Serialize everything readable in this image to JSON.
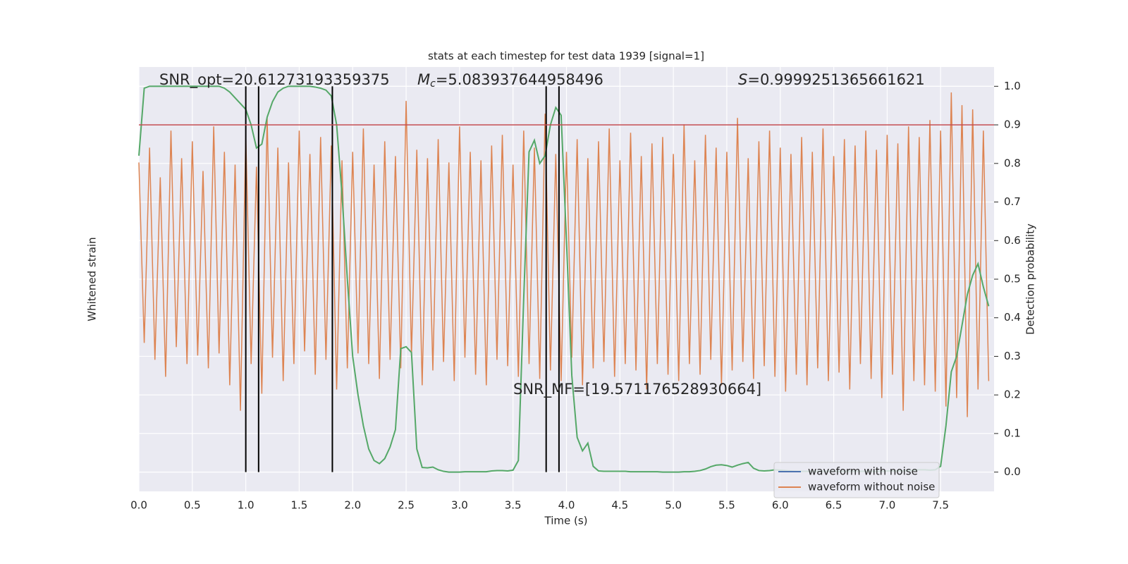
{
  "chart_data": {
    "type": "line",
    "title": "stats at each timestep for test data 1939 [signal=1]",
    "xlabel": "Time (s)",
    "ylabel": "Whitened strain",
    "y2label": "Detection probability",
    "annotations": [
      {
        "text": "SNR_opt=20.61273193359375"
      },
      {
        "symbol": "M",
        "sub": "c",
        "text": "=5.083937644958496"
      },
      {
        "symbol": "S",
        "text": "=0.9999251365661621"
      },
      {
        "text": "SNR_MF=[19.571176528930664]"
      }
    ],
    "xlim": [
      0,
      8
    ],
    "xticks": [
      {
        "value": 0,
        "label": "0.0"
      },
      0.5,
      {
        "value": 1,
        "label": "1.0"
      },
      1.5,
      {
        "value": 2,
        "label": "2.0"
      },
      2.5,
      {
        "value": 3,
        "label": "3.0"
      },
      3.5,
      {
        "value": 4,
        "label": "4.0"
      },
      4.5,
      {
        "value": 5,
        "label": "5.0"
      },
      5.5,
      {
        "value": 6,
        "label": "6.0"
      },
      6.5,
      {
        "value": 7,
        "label": "7.0"
      },
      7.5
    ],
    "ylim": [
      -1.1,
      0.9
    ],
    "y2lim": [
      -0.05,
      1.05
    ],
    "y2ticks": [
      {
        "value": 0,
        "label": "0.0"
      },
      0.1,
      0.2,
      0.3,
      0.4,
      0.5,
      0.6,
      0.7,
      0.8,
      0.9,
      {
        "value": 1,
        "label": "1.0"
      }
    ],
    "grid": true,
    "legend": "lower right",
    "threshold": 0.9,
    "threshold_color": "#c44e52",
    "vlines": [
      1.0,
      1.12,
      1.81,
      3.81,
      3.93
    ],
    "vline_color": "#000000",
    "x": [
      0,
      0.05,
      0.1,
      0.15,
      0.2,
      0.25,
      0.3,
      0.35,
      0.4,
      0.45,
      0.5,
      0.55,
      0.6,
      0.65,
      0.7,
      0.75,
      0.8,
      0.85,
      0.9,
      0.95,
      1,
      1.05,
      1.1,
      1.15,
      1.2,
      1.25,
      1.3,
      1.35,
      1.4,
      1.45,
      1.5,
      1.55,
      1.6,
      1.65,
      1.7,
      1.75,
      1.8,
      1.85,
      1.9,
      1.95,
      2,
      2.05,
      2.1,
      2.15,
      2.2,
      2.25,
      2.3,
      2.35,
      2.4,
      2.45,
      2.5,
      2.55,
      2.6,
      2.65,
      2.7,
      2.75,
      2.8,
      2.85,
      2.9,
      2.95,
      3,
      3.05,
      3.1,
      3.15,
      3.2,
      3.25,
      3.3,
      3.35,
      3.4,
      3.45,
      3.5,
      3.55,
      3.6,
      3.65,
      3.7,
      3.75,
      3.8,
      3.85,
      3.9,
      3.95,
      4,
      4.05,
      4.1,
      4.15,
      4.2,
      4.25,
      4.3,
      4.35,
      4.4,
      4.45,
      4.5,
      4.55,
      4.6,
      4.65,
      4.7,
      4.75,
      4.8,
      4.85,
      4.9,
      4.95,
      5,
      5.05,
      5.1,
      5.15,
      5.2,
      5.25,
      5.3,
      5.35,
      5.4,
      5.45,
      5.5,
      5.55,
      5.6,
      5.65,
      5.7,
      5.75,
      5.8,
      5.85,
      5.9,
      5.95,
      6,
      6.05,
      6.1,
      6.15,
      6.2,
      6.25,
      6.3,
      6.35,
      6.4,
      6.45,
      6.5,
      6.55,
      6.6,
      6.65,
      6.7,
      6.75,
      6.8,
      6.85,
      6.9,
      6.95,
      7,
      7.05,
      7.1,
      7.15,
      7.2,
      7.25,
      7.3,
      7.35,
      7.4,
      7.45,
      7.5,
      7.55,
      7.6,
      7.65,
      7.7,
      7.75,
      7.8,
      7.85,
      7.9,
      7.95
    ],
    "series": [
      {
        "name": "waveform with noise",
        "color": "#4c72b0"
      },
      {
        "name": "waveform without noise",
        "color": "#dd8452",
        "values": [
          0.45,
          -0.4,
          0.52,
          -0.48,
          0.38,
          -0.56,
          0.6,
          -0.42,
          0.47,
          -0.5,
          0.55,
          -0.46,
          0.41,
          -0.52,
          0.62,
          -0.45,
          0.5,
          -0.6,
          0.44,
          -0.72,
          0.58,
          -0.5,
          0.43,
          -0.64,
          0.66,
          -0.47,
          0.52,
          -0.58,
          0.45,
          -0.5,
          0.6,
          -0.44,
          0.49,
          -0.55,
          0.57,
          -0.48,
          0.53,
          -0.62,
          0.46,
          -0.52,
          0.5,
          -0.45,
          0.61,
          -0.5,
          0.44,
          -0.57,
          0.55,
          -0.48,
          0.48,
          -0.52,
          0.74,
          -0.46,
          0.51,
          -0.6,
          0.47,
          -0.53,
          0.56,
          -0.49,
          0.45,
          -0.58,
          0.62,
          -0.47,
          0.5,
          -0.55,
          0.46,
          -0.6,
          0.53,
          -0.48,
          0.58,
          -0.51,
          0.44,
          -0.56,
          0.6,
          -0.5,
          0.52,
          -0.57,
          0.68,
          -0.53,
          0.49,
          -0.58,
          0.5,
          -0.47,
          0.56,
          -0.6,
          0.47,
          -0.52,
          0.55,
          -0.49,
          0.61,
          -0.56,
          0.46,
          -0.5,
          0.59,
          -0.53,
          0.48,
          -0.62,
          0.54,
          -0.5,
          0.57,
          -0.55,
          0.49,
          -0.58,
          0.63,
          -0.5,
          0.46,
          -0.55,
          0.58,
          -0.48,
          0.52,
          -0.6,
          0.5,
          -0.53,
          0.66,
          -0.49,
          0.47,
          -0.57,
          0.55,
          -0.51,
          0.6,
          -0.56,
          0.52,
          -0.63,
          0.49,
          -0.55,
          0.57,
          -0.6,
          0.5,
          -0.52,
          0.61,
          -0.58,
          0.48,
          -0.54,
          0.56,
          -0.62,
          0.53,
          -0.5,
          0.6,
          -0.57,
          0.51,
          -0.66,
          0.58,
          -0.55,
          0.54,
          -0.72,
          0.62,
          -0.58,
          0.57,
          -0.6,
          0.65,
          -0.63,
          0.6,
          -0.7,
          0.78,
          -0.66,
          0.72,
          -0.75,
          0.7,
          -0.62,
          0.6,
          -0.58
        ]
      },
      {
        "color": "#55a868",
        "axis": "y2",
        "values": [
          0.82,
          0.995,
          1,
          1,
          1,
          1,
          1,
          1,
          1,
          1,
          1,
          1,
          1,
          1,
          1,
          1,
          0.995,
          0.985,
          0.97,
          0.955,
          0.94,
          0.9,
          0.84,
          0.85,
          0.92,
          0.96,
          0.985,
          0.995,
          1,
          1,
          1,
          1,
          1,
          0.998,
          0.995,
          0.99,
          0.975,
          0.9,
          0.72,
          0.5,
          0.3,
          0.2,
          0.12,
          0.06,
          0.03,
          0.022,
          0.035,
          0.065,
          0.11,
          0.32,
          0.325,
          0.31,
          0.06,
          0.012,
          0.011,
          0.013,
          0.006,
          0.002,
          0,
          0,
          0,
          0.001,
          0.001,
          0.001,
          0.001,
          0.001,
          0.003,
          0.004,
          0.004,
          0.003,
          0.005,
          0.03,
          0.45,
          0.83,
          0.86,
          0.8,
          0.82,
          0.9,
          0.945,
          0.925,
          0.6,
          0.25,
          0.09,
          0.055,
          0.075,
          0.015,
          0.003,
          0.002,
          0.002,
          0.002,
          0.002,
          0.002,
          0.001,
          0.001,
          0.001,
          0.001,
          0.001,
          0.001,
          0,
          0,
          0,
          0,
          0.001,
          0.001,
          0.002,
          0.004,
          0.008,
          0.014,
          0.018,
          0.019,
          0.017,
          0.013,
          0.018,
          0.022,
          0.025,
          0.01,
          0.004,
          0.003,
          0.004,
          0.006,
          0.005,
          0.004,
          0.003,
          0.002,
          0.002,
          0.002,
          0.002,
          0.002,
          0.002,
          0.002,
          0.002,
          0.002,
          0.002,
          0.002,
          0.002,
          0.002,
          0.002,
          0.002,
          0.002,
          0.002,
          0.003,
          0.003,
          0.003,
          0.003,
          0.004,
          0.005,
          0.006,
          0.006,
          0.005,
          0.006,
          0.015,
          0.12,
          0.26,
          0.3,
          0.38,
          0.46,
          0.51,
          0.54,
          0.48,
          0.43
        ]
      }
    ]
  }
}
